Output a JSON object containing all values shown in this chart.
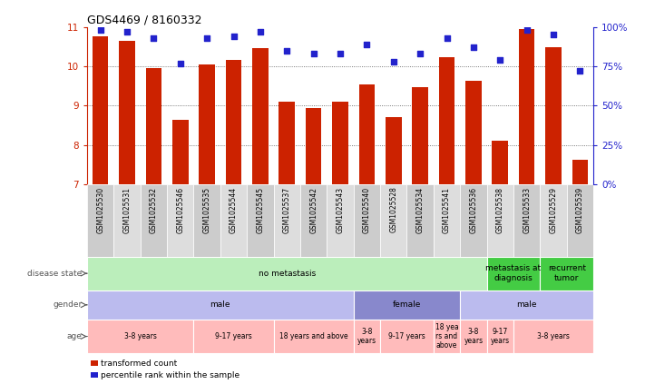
{
  "title": "GDS4469 / 8160332",
  "samples": [
    "GSM1025530",
    "GSM1025531",
    "GSM1025532",
    "GSM1025546",
    "GSM1025535",
    "GSM1025544",
    "GSM1025545",
    "GSM1025537",
    "GSM1025542",
    "GSM1025543",
    "GSM1025540",
    "GSM1025528",
    "GSM1025534",
    "GSM1025541",
    "GSM1025536",
    "GSM1025538",
    "GSM1025533",
    "GSM1025529",
    "GSM1025539"
  ],
  "bar_values": [
    10.75,
    10.65,
    9.95,
    8.65,
    10.05,
    10.15,
    10.45,
    9.1,
    8.95,
    9.1,
    9.55,
    8.72,
    9.48,
    10.22,
    9.62,
    8.1,
    10.95,
    10.48,
    7.62
  ],
  "dot_values": [
    98,
    97,
    93,
    77,
    93,
    94,
    97,
    85,
    83,
    83,
    89,
    78,
    83,
    93,
    87,
    79,
    98,
    95,
    72
  ],
  "ylim_left": [
    7,
    11
  ],
  "ylim_right": [
    0,
    100
  ],
  "yticks_left": [
    7,
    8,
    9,
    10,
    11
  ],
  "yticks_right": [
    0,
    25,
    50,
    75,
    100
  ],
  "ytick_labels_right": [
    "0%",
    "25%",
    "50%",
    "75%",
    "100%"
  ],
  "bar_color": "#cc2200",
  "dot_color": "#2222cc",
  "grid_color": "#555555",
  "disease_state_rows": [
    {
      "label": "no metastasis",
      "start": 0,
      "end": 15,
      "color": "#bbeebb"
    },
    {
      "label": "metastasis at\ndiagnosis",
      "start": 15,
      "end": 17,
      "color": "#44cc44"
    },
    {
      "label": "recurrent\ntumor",
      "start": 17,
      "end": 19,
      "color": "#44cc44"
    }
  ],
  "gender_rows": [
    {
      "label": "male",
      "start": 0,
      "end": 10,
      "color": "#bbbbee"
    },
    {
      "label": "female",
      "start": 10,
      "end": 14,
      "color": "#8888cc"
    },
    {
      "label": "male",
      "start": 14,
      "end": 19,
      "color": "#bbbbee"
    }
  ],
  "age_rows": [
    {
      "label": "3-8 years",
      "start": 0,
      "end": 4,
      "color": "#ffbbbb"
    },
    {
      "label": "9-17 years",
      "start": 4,
      "end": 7,
      "color": "#ffbbbb"
    },
    {
      "label": "18 years and above",
      "start": 7,
      "end": 10,
      "color": "#ffbbbb"
    },
    {
      "label": "3-8\nyears",
      "start": 10,
      "end": 11,
      "color": "#ffbbbb"
    },
    {
      "label": "9-17 years",
      "start": 11,
      "end": 13,
      "color": "#ffbbbb"
    },
    {
      "label": "18 yea\nrs and\nabove",
      "start": 13,
      "end": 14,
      "color": "#ffbbbb"
    },
    {
      "label": "3-8\nyears",
      "start": 14,
      "end": 15,
      "color": "#ffbbbb"
    },
    {
      "label": "9-17\nyears",
      "start": 15,
      "end": 16,
      "color": "#ffbbbb"
    },
    {
      "label": "3-8 years",
      "start": 16,
      "end": 19,
      "color": "#ffbbbb"
    }
  ],
  "row_labels": [
    "disease state",
    "gender",
    "age"
  ],
  "legend_items": [
    {
      "label": "transformed count",
      "color": "#cc2200",
      "marker": "s"
    },
    {
      "label": "percentile rank within the sample",
      "color": "#2222cc",
      "marker": "s"
    }
  ],
  "bg_color": "#ffffff",
  "tick_color_left": "#cc2200",
  "tick_color_right": "#2222cc",
  "sample_box_colors": [
    "#cccccc",
    "#dddddd"
  ]
}
